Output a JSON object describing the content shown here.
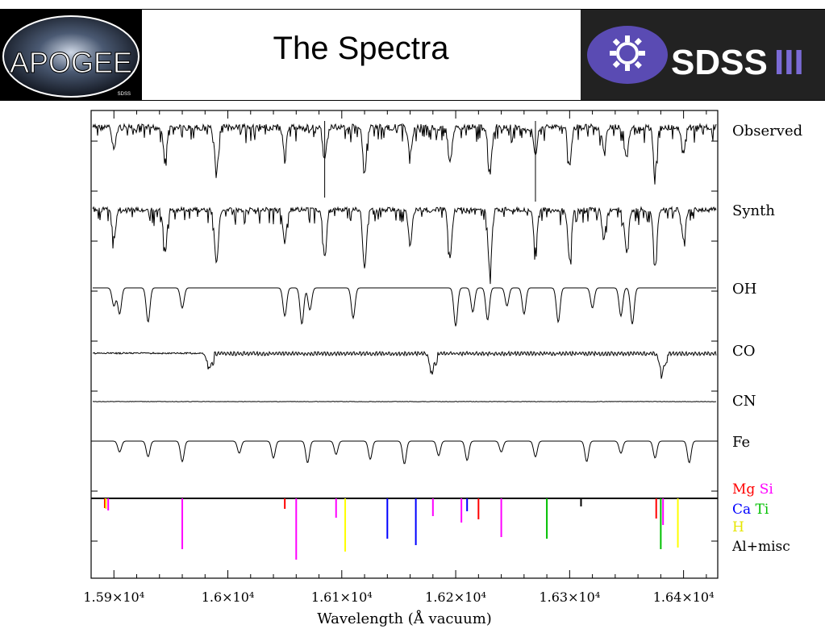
{
  "header": {
    "title": "The Spectra",
    "logo_left_text": "APOGEE",
    "logo_left_small": "SDSS",
    "logo_right_text": "SDSS",
    "logo_right_roman": "III"
  },
  "chart_data": {
    "type": "line",
    "xlabel": "Wavelength (Å vacuum)",
    "xlim": [
      15880,
      16430
    ],
    "x_ticks": [
      {
        "value": 15900,
        "label": "1.59×10⁴"
      },
      {
        "value": 16000,
        "label": "1.6×10⁴"
      },
      {
        "value": 16100,
        "label": "1.61×10⁴"
      },
      {
        "value": 16200,
        "label": "1.62×10⁴"
      },
      {
        "value": 16300,
        "label": "1.63×10⁴"
      },
      {
        "value": 16400,
        "label": "1.64×10⁴"
      }
    ],
    "grid": false,
    "legend": "right",
    "series": [
      {
        "name": "Observed",
        "color": "#000000",
        "lines": [
          15900,
          15945,
          15990,
          16050,
          16085,
          16120,
          16160,
          16195,
          16230,
          16270,
          16300,
          16330,
          16350,
          16375,
          16400
        ]
      },
      {
        "name": "Synth",
        "color": "#000000",
        "lines": [
          15900,
          15945,
          15990,
          16050,
          16085,
          16120,
          16160,
          16195,
          16230,
          16270,
          16300,
          16330,
          16350,
          16375,
          16400
        ]
      },
      {
        "name": "OH",
        "color": "#000000",
        "lines": [
          15900,
          15905,
          15930,
          15960,
          16050,
          16065,
          16072,
          16110,
          16200,
          16215,
          16228,
          16245,
          16260,
          16290,
          16320,
          16345,
          16355
        ]
      },
      {
        "name": "CO",
        "color": "#000000",
        "lines": [
          15982,
          16178,
          16380
        ]
      },
      {
        "name": "CN",
        "color": "#000000",
        "lines": []
      },
      {
        "name": "Fe",
        "color": "#000000",
        "lines": [
          15905,
          15930,
          15960,
          16010,
          16040,
          16070,
          16095,
          16125,
          16155,
          16185,
          16210,
          16240,
          16270,
          16315,
          16345,
          16375,
          16405
        ]
      }
    ],
    "element_lines": [
      {
        "name": "Mg",
        "color": "#ff0000",
        "values": [
          15892,
          16050,
          16220,
          16376
        ]
      },
      {
        "name": "Si",
        "color": "#ff00ff",
        "values": [
          15895,
          15960,
          16060,
          16095,
          16180,
          16205,
          16240,
          16382
        ]
      },
      {
        "name": "Ca",
        "color": "#0000ff",
        "values": [
          16140,
          16165,
          16210
        ]
      },
      {
        "name": "Ti",
        "color": "#00c000",
        "values": [
          16280,
          16380
        ]
      },
      {
        "name": "H",
        "color": "#ffff00",
        "values": [
          15893,
          16103,
          16395
        ]
      },
      {
        "name": "Al+misc",
        "color": "#000000",
        "values": [
          16310
        ]
      }
    ],
    "legend_labels": [
      {
        "text": "Observed",
        "color": "#000000"
      },
      {
        "text": "Synth",
        "color": "#000000"
      },
      {
        "text": "OH",
        "color": "#000000"
      },
      {
        "text": "CO",
        "color": "#000000"
      },
      {
        "text": "CN",
        "color": "#000000"
      },
      {
        "text": "Fe",
        "color": "#000000"
      }
    ],
    "legend_colored": [
      [
        {
          "text": "Mg",
          "color": "#ff0000"
        },
        {
          "text": "Si",
          "color": "#ff00ff"
        }
      ],
      [
        {
          "text": "Ca",
          "color": "#0000ff"
        },
        {
          "text": "Ti",
          "color": "#00c000"
        }
      ],
      [
        {
          "text": "H",
          "color": "#e6e600"
        }
      ],
      [
        {
          "text": "Al+misc",
          "color": "#000000"
        }
      ]
    ]
  }
}
